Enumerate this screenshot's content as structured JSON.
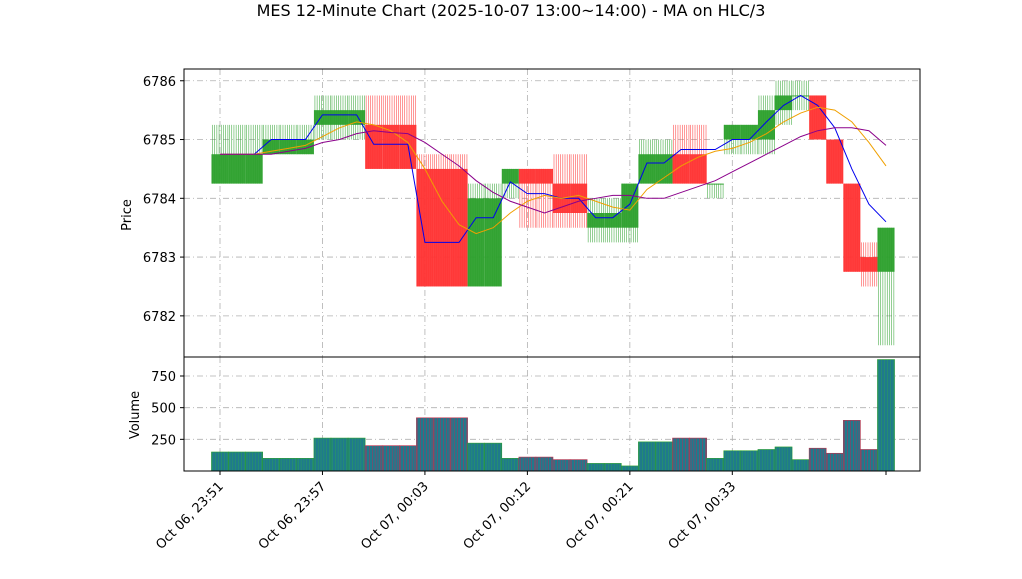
{
  "chart_data": {
    "type": "candlestick-renko",
    "title": "MES 12-Minute Chart (2025-10-07 13:00~14:00) - MA on HLC/3",
    "ylabel": "Price",
    "volume_ylabel": "Volume",
    "ylim": [
      6781.3,
      6786.2
    ],
    "volume_ylim": [
      0,
      900
    ],
    "yticks": [
      6782,
      6783,
      6784,
      6785,
      6786
    ],
    "volume_yticks": [
      250,
      500,
      750
    ],
    "grid": true,
    "x_tick_labels": [
      "Oct 06, 23:51",
      "Oct 06, 23:57",
      "Oct 07, 00:03",
      "Oct 07, 00:12",
      "Oct 07, 00:21",
      "Oct 07, 00:33"
    ],
    "x_tick_bar_index": [
      0,
      6,
      12,
      18,
      24,
      30
    ],
    "bars": [
      {
        "open": 6784.25,
        "close": 6784.75,
        "high": 6785.25,
        "low": 6784.25,
        "volume": 150
      },
      {
        "open": 6784.25,
        "close": 6784.75,
        "high": 6785.25,
        "low": 6784.25,
        "volume": 150
      },
      {
        "open": 6784.25,
        "close": 6784.75,
        "high": 6785.25,
        "low": 6784.25,
        "volume": 150
      },
      {
        "open": 6784.75,
        "close": 6785.0,
        "high": 6785.25,
        "low": 6784.75,
        "volume": 100
      },
      {
        "open": 6784.75,
        "close": 6785.0,
        "high": 6785.25,
        "low": 6784.75,
        "volume": 100
      },
      {
        "open": 6784.75,
        "close": 6785.0,
        "high": 6785.25,
        "low": 6784.75,
        "volume": 100
      },
      {
        "open": 6785.25,
        "close": 6785.5,
        "high": 6785.75,
        "low": 6785.0,
        "volume": 260
      },
      {
        "open": 6785.25,
        "close": 6785.5,
        "high": 6785.75,
        "low": 6785.0,
        "volume": 260
      },
      {
        "open": 6785.25,
        "close": 6785.5,
        "high": 6785.75,
        "low": 6785.0,
        "volume": 260
      },
      {
        "open": 6785.25,
        "close": 6784.5,
        "high": 6785.75,
        "low": 6784.5,
        "volume": 200
      },
      {
        "open": 6785.25,
        "close": 6784.5,
        "high": 6785.75,
        "low": 6784.5,
        "volume": 200
      },
      {
        "open": 6785.25,
        "close": 6784.5,
        "high": 6785.75,
        "low": 6784.5,
        "volume": 200
      },
      {
        "open": 6784.5,
        "close": 6782.5,
        "high": 6784.75,
        "low": 6782.5,
        "volume": 420
      },
      {
        "open": 6784.5,
        "close": 6782.5,
        "high": 6784.75,
        "low": 6782.5,
        "volume": 420
      },
      {
        "open": 6784.5,
        "close": 6782.5,
        "high": 6784.75,
        "low": 6782.5,
        "volume": 420
      },
      {
        "open": 6782.5,
        "close": 6784.0,
        "high": 6784.25,
        "low": 6782.5,
        "volume": 220
      },
      {
        "open": 6782.5,
        "close": 6784.0,
        "high": 6784.25,
        "low": 6782.5,
        "volume": 220
      },
      {
        "open": 6784.25,
        "close": 6784.5,
        "high": 6784.5,
        "low": 6784.0,
        "volume": 100
      },
      {
        "open": 6784.5,
        "close": 6784.25,
        "high": 6784.5,
        "low": 6783.5,
        "volume": 110
      },
      {
        "open": 6784.5,
        "close": 6784.25,
        "high": 6784.5,
        "low": 6783.5,
        "volume": 110
      },
      {
        "open": 6784.25,
        "close": 6783.75,
        "high": 6784.75,
        "low": 6783.5,
        "volume": 90
      },
      {
        "open": 6784.25,
        "close": 6783.75,
        "high": 6784.75,
        "low": 6783.5,
        "volume": 90
      },
      {
        "open": 6783.5,
        "close": 6783.75,
        "high": 6784.0,
        "low": 6783.25,
        "volume": 60
      },
      {
        "open": 6783.5,
        "close": 6783.75,
        "high": 6784.0,
        "low": 6783.25,
        "volume": 60
      },
      {
        "open": 6783.5,
        "close": 6784.25,
        "high": 6784.25,
        "low": 6783.25,
        "volume": 40
      },
      {
        "open": 6784.25,
        "close": 6784.75,
        "high": 6785.0,
        "low": 6784.25,
        "volume": 230
      },
      {
        "open": 6784.25,
        "close": 6784.75,
        "high": 6785.0,
        "low": 6784.25,
        "volume": 230
      },
      {
        "open": 6784.75,
        "close": 6784.25,
        "high": 6785.25,
        "low": 6784.25,
        "volume": 260
      },
      {
        "open": 6784.75,
        "close": 6784.25,
        "high": 6785.25,
        "low": 6784.25,
        "volume": 260
      },
      {
        "open": 6784.25,
        "close": 6784.25,
        "high": 6784.25,
        "low": 6784.0,
        "volume": 100
      },
      {
        "open": 6785.0,
        "close": 6785.25,
        "high": 6785.25,
        "low": 6784.75,
        "volume": 160
      },
      {
        "open": 6785.0,
        "close": 6785.25,
        "high": 6785.25,
        "low": 6784.75,
        "volume": 160
      },
      {
        "open": 6785.0,
        "close": 6785.5,
        "high": 6785.75,
        "low": 6784.75,
        "volume": 170
      },
      {
        "open": 6785.5,
        "close": 6785.75,
        "high": 6786.0,
        "low": 6785.25,
        "volume": 190
      },
      {
        "open": 6785.75,
        "close": 6785.75,
        "high": 6786.0,
        "low": 6785.5,
        "volume": 90
      },
      {
        "open": 6785.75,
        "close": 6785.0,
        "high": 6785.75,
        "low": 6785.0,
        "volume": 180
      },
      {
        "open": 6785.0,
        "close": 6784.25,
        "high": 6785.0,
        "low": 6784.25,
        "volume": 140
      },
      {
        "open": 6784.25,
        "close": 6782.75,
        "high": 6784.25,
        "low": 6782.75,
        "volume": 400
      },
      {
        "open": 6783.0,
        "close": 6782.75,
        "high": 6783.25,
        "low": 6782.5,
        "volume": 170
      },
      {
        "open": 6782.75,
        "close": 6783.5,
        "high": 6783.5,
        "low": 6781.5,
        "volume": 880
      }
    ],
    "series": [
      {
        "color": "#0000ee",
        "values": [
          6784.75,
          6784.75,
          6784.75,
          6785.0,
          6785.0,
          6785.0,
          6785.42,
          6785.42,
          6785.42,
          6784.92,
          6784.92,
          6784.92,
          6783.25,
          6783.25,
          6783.25,
          6783.67,
          6783.67,
          6784.28,
          6784.08,
          6784.08,
          6784.0,
          6784.0,
          6783.67,
          6783.67,
          6783.9,
          6784.6,
          6784.6,
          6784.83,
          6784.83,
          6784.83,
          6785.0,
          6785.0,
          6785.3,
          6785.58,
          6785.75,
          6785.58,
          6785.2,
          6784.5,
          6783.9,
          6783.6
        ]
      },
      {
        "color": "#f0a000",
        "values": [
          6784.75,
          6784.75,
          6784.75,
          6784.8,
          6784.85,
          6784.9,
          6785.05,
          6785.2,
          6785.3,
          6785.25,
          6785.15,
          6784.95,
          6784.5,
          6783.95,
          6783.55,
          6783.4,
          6783.5,
          6783.75,
          6783.95,
          6784.05,
          6784.0,
          6784.05,
          6783.95,
          6783.85,
          6783.8,
          6784.15,
          6784.35,
          6784.55,
          6784.7,
          6784.8,
          6784.85,
          6784.95,
          6785.1,
          6785.3,
          6785.45,
          6785.55,
          6785.5,
          6785.3,
          6784.95,
          6784.55
        ]
      },
      {
        "color": "#8b008b",
        "values": [
          6784.75,
          6784.75,
          6784.75,
          6784.75,
          6784.8,
          6784.85,
          6784.95,
          6785.0,
          6785.1,
          6785.15,
          6785.12,
          6785.1,
          6784.95,
          6784.75,
          6784.55,
          6784.3,
          6784.1,
          6783.95,
          6783.85,
          6783.75,
          6783.85,
          6783.95,
          6784.0,
          6784.05,
          6784.05,
          6784.0,
          6784.0,
          6784.1,
          6784.2,
          6784.3,
          6784.45,
          6784.6,
          6784.75,
          6784.9,
          6785.05,
          6785.15,
          6785.2,
          6785.2,
          6785.15,
          6784.9
        ]
      }
    ]
  }
}
